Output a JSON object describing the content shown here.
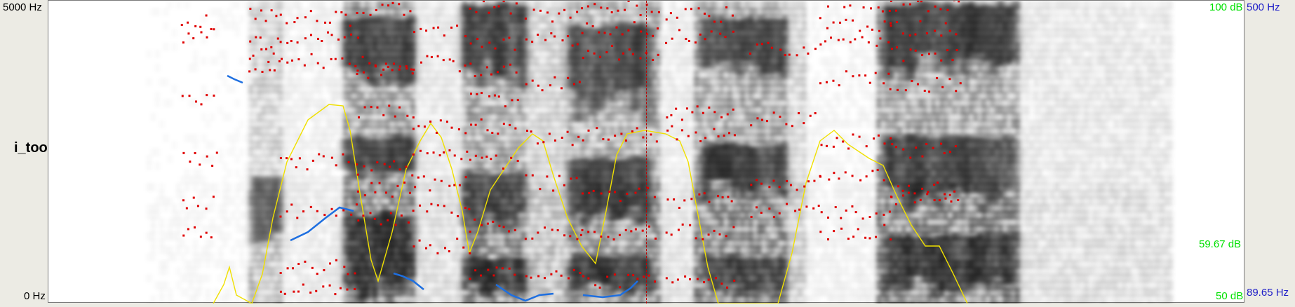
{
  "window": {
    "title": "i_took_a_beat"
  },
  "axes": {
    "freq_top": "5000 Hz",
    "freq_bottom": "0 Hz",
    "intensity_top": "100 dB",
    "intensity_mid": "59.67 dB",
    "intensity_bottom": "50 dB",
    "pitch_top": "500 Hz",
    "pitch_bottom": "89.65 Hz"
  },
  "colors": {
    "formant": "#e00000",
    "intensity": "#f0e000",
    "pitch": "#1e6fe0",
    "spectrogram": "#000000",
    "cursor": "#c00000"
  }
}
